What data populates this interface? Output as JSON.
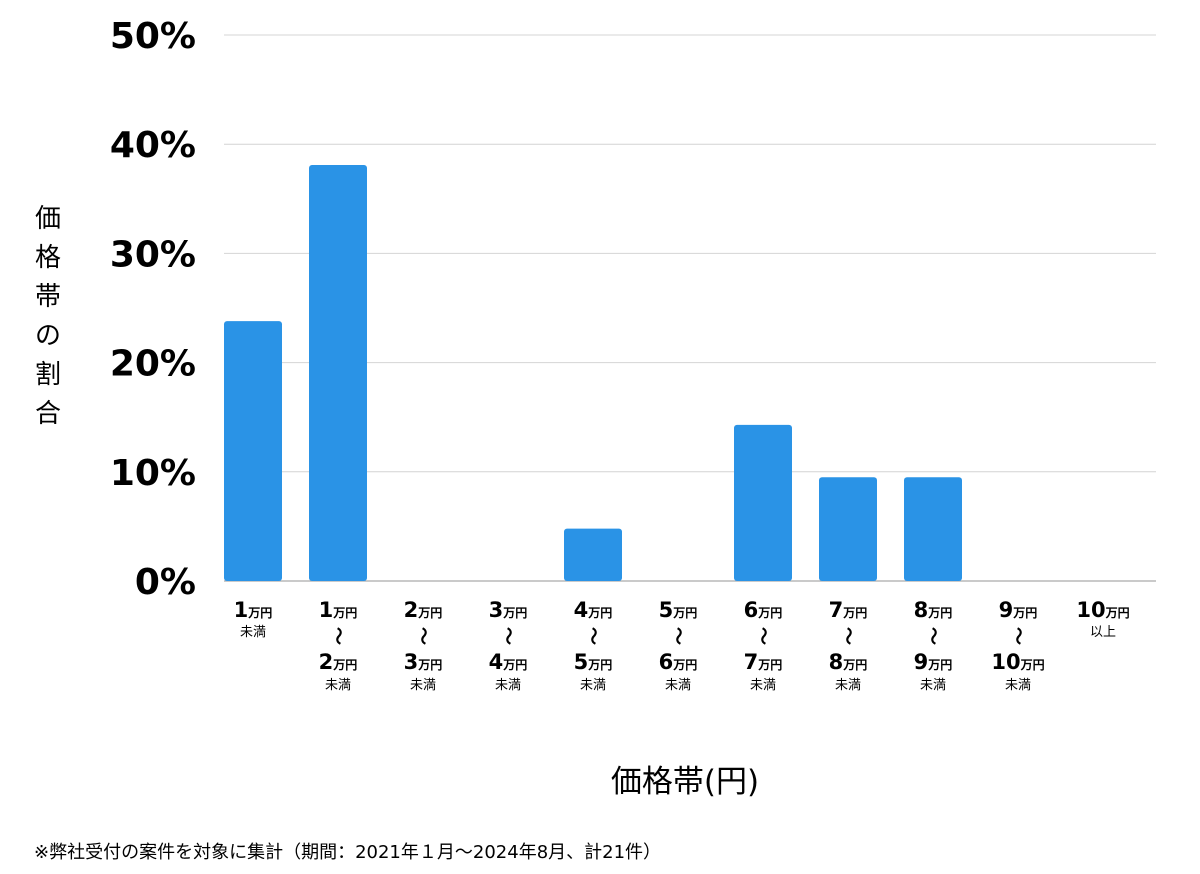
{
  "chart_data": {
    "type": "bar",
    "title": "",
    "xlabel": "価格帯(円)",
    "ylabel": "価格帯の割合",
    "ylim": [
      0,
      50
    ],
    "yticks": [
      "0%",
      "10%",
      "20%",
      "30%",
      "40%",
      "50%"
    ],
    "grid": true,
    "color": "#2a93e6",
    "categories": [
      {
        "from": "1",
        "from_unit": "万円",
        "tilde": "",
        "to": "",
        "to_unit": "",
        "note": "未満"
      },
      {
        "from": "1",
        "from_unit": "万円",
        "tilde": "〜",
        "to": "2",
        "to_unit": "万円",
        "note": "未満"
      },
      {
        "from": "2",
        "from_unit": "万円",
        "tilde": "〜",
        "to": "3",
        "to_unit": "万円",
        "note": "未満"
      },
      {
        "from": "3",
        "from_unit": "万円",
        "tilde": "〜",
        "to": "4",
        "to_unit": "万円",
        "note": "未満"
      },
      {
        "from": "4",
        "from_unit": "万円",
        "tilde": "〜",
        "to": "5",
        "to_unit": "万円",
        "note": "未満"
      },
      {
        "from": "5",
        "from_unit": "万円",
        "tilde": "〜",
        "to": "6",
        "to_unit": "万円",
        "note": "未満"
      },
      {
        "from": "6",
        "from_unit": "万円",
        "tilde": "〜",
        "to": "7",
        "to_unit": "万円",
        "note": "未満"
      },
      {
        "from": "7",
        "from_unit": "万円",
        "tilde": "〜",
        "to": "8",
        "to_unit": "万円",
        "note": "未満"
      },
      {
        "from": "8",
        "from_unit": "万円",
        "tilde": "〜",
        "to": "9",
        "to_unit": "万円",
        "note": "未満"
      },
      {
        "from": "9",
        "from_unit": "万円",
        "tilde": "〜",
        "to": "10",
        "to_unit": "万円",
        "note": "未満"
      },
      {
        "from": "10",
        "from_unit": "万円",
        "tilde": "",
        "to": "",
        "to_unit": "",
        "note": "以上"
      }
    ],
    "values": [
      23.8,
      38.1,
      0,
      0,
      4.8,
      0,
      14.3,
      9.5,
      9.5,
      0,
      0
    ]
  },
  "footnote": "※弊社受付の案件を対象に集計（期間：2021年１月〜2024年8月、計21件）"
}
